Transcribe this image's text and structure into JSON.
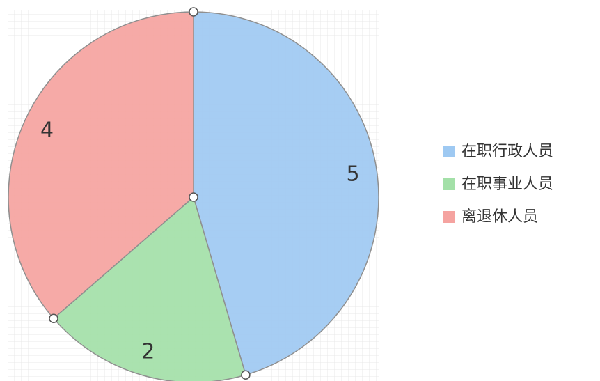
{
  "chart_data": {
    "type": "pie",
    "categories": [
      "在职行政人员",
      "在职事业人员",
      "离退休人员"
    ],
    "values": [
      5,
      2,
      4
    ],
    "data_labels": [
      "5",
      "2",
      "4"
    ],
    "colors": [
      "#9ec9f2",
      "#a3e0a8",
      "#f5a3a0"
    ],
    "start_angle": "top",
    "direction": "clockwise",
    "legend_position": "right",
    "grid": true
  },
  "legend": {
    "items": [
      {
        "label": "在职行政人员",
        "color": "#9ec9f2"
      },
      {
        "label": "在职事业人员",
        "color": "#a3e0a8"
      },
      {
        "label": "离退休人员",
        "color": "#f5a3a0"
      }
    ]
  }
}
